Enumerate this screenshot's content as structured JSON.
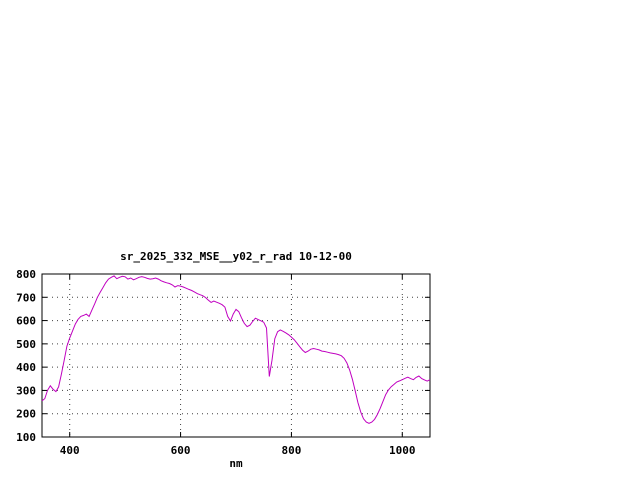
{
  "chart_data": {
    "type": "line",
    "title": "sr_2025_332_MSE__y02_r_rad 10-12-00",
    "xlabel": "nm",
    "ylabel": "",
    "xlim": [
      350,
      1050
    ],
    "ylim": [
      100,
      800
    ],
    "xticks": [
      400,
      600,
      800,
      1000
    ],
    "yticks": [
      100,
      200,
      300,
      400,
      500,
      600,
      700,
      800
    ],
    "grid": true,
    "legend_position": "none",
    "line_color": "#c000c0",
    "series": [
      {
        "name": "sr_2025_332_MSE__y02_r_rad",
        "x": [
          350,
          355,
          360,
          365,
          370,
          375,
          380,
          385,
          390,
          395,
          400,
          405,
          410,
          415,
          420,
          425,
          430,
          435,
          440,
          445,
          450,
          455,
          460,
          465,
          470,
          475,
          480,
          485,
          490,
          495,
          500,
          505,
          510,
          515,
          520,
          525,
          530,
          535,
          540,
          545,
          550,
          555,
          560,
          565,
          570,
          575,
          580,
          585,
          590,
          595,
          600,
          605,
          610,
          615,
          620,
          625,
          630,
          635,
          640,
          645,
          650,
          655,
          660,
          665,
          670,
          675,
          680,
          685,
          690,
          695,
          700,
          705,
          710,
          715,
          720,
          725,
          730,
          735,
          740,
          745,
          750,
          755,
          760,
          765,
          770,
          775,
          780,
          785,
          790,
          795,
          800,
          805,
          810,
          815,
          820,
          825,
          830,
          835,
          840,
          845,
          850,
          855,
          860,
          865,
          870,
          875,
          880,
          885,
          890,
          895,
          900,
          905,
          910,
          915,
          920,
          925,
          930,
          935,
          940,
          945,
          950,
          955,
          960,
          965,
          970,
          975,
          980,
          985,
          990,
          995,
          1000,
          1005,
          1010,
          1015,
          1020,
          1025,
          1030,
          1035,
          1040,
          1045,
          1050
        ],
        "y": [
          255,
          265,
          300,
          320,
          305,
          295,
          315,
          370,
          430,
          490,
          525,
          555,
          585,
          605,
          618,
          622,
          628,
          618,
          645,
          672,
          700,
          722,
          742,
          762,
          778,
          786,
          792,
          780,
          786,
          790,
          788,
          778,
          783,
          775,
          780,
          786,
          789,
          786,
          781,
          778,
          780,
          783,
          778,
          771,
          766,
          762,
          759,
          753,
          744,
          750,
          748,
          744,
          739,
          734,
          729,
          723,
          716,
          711,
          707,
          699,
          688,
          678,
          684,
          679,
          674,
          668,
          658,
          618,
          598,
          628,
          648,
          638,
          612,
          588,
          574,
          580,
          596,
          610,
          604,
          599,
          593,
          568,
          360,
          430,
          522,
          552,
          560,
          554,
          547,
          539,
          529,
          518,
          503,
          488,
          473,
          463,
          469,
          477,
          480,
          477,
          474,
          469,
          467,
          464,
          461,
          459,
          457,
          454,
          449,
          438,
          418,
          388,
          348,
          298,
          248,
          208,
          178,
          164,
          159,
          164,
          176,
          196,
          222,
          252,
          282,
          302,
          316,
          326,
          336,
          341,
          346,
          352,
          357,
          351,
          346,
          356,
          362,
          351,
          345,
          340,
          346
        ]
      }
    ]
  }
}
